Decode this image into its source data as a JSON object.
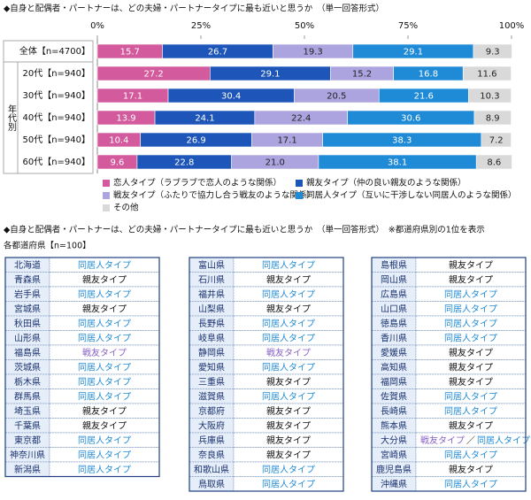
{
  "chart_data": {
    "type": "stackedbar",
    "title": "◆自身と配偶者・パートナーは、どの夫婦・パートナータイプに最も近いと思うか　（単一回答形式）",
    "categories": [
      "全体【n=4700】",
      "20代【n=940】",
      "30代【n=940】",
      "40代【n=940】",
      "50代【n=940】",
      "60代【n=940】"
    ],
    "group_label": "年代別",
    "xlim": [
      0,
      100
    ],
    "xticks": [
      {
        "value": 0,
        "label": "0%"
      },
      {
        "value": 25,
        "label": "25%"
      },
      {
        "value": 50,
        "label": "50%"
      },
      {
        "value": 75,
        "label": "75%"
      },
      {
        "value": 100,
        "label": "100%"
      }
    ],
    "series": [
      {
        "name": "恋人タイプ（ラブラブで恋人のような関係）",
        "color": "#d35a9c",
        "label_color": "#ffffff",
        "values": [
          15.7,
          27.2,
          17.1,
          13.9,
          10.4,
          9.6
        ]
      },
      {
        "name": "親友タイプ（仲の良い親友のような関係）",
        "color": "#1d56b8",
        "label_color": "#ffffff",
        "values": [
          26.7,
          29.1,
          30.4,
          24.1,
          26.9,
          22.8
        ]
      },
      {
        "name": "戦友タイプ（ふたりで協力し合う戦友のような関係）",
        "color": "#aba4df",
        "label_color": "#222222",
        "values": [
          19.3,
          15.2,
          20.5,
          22.4,
          17.1,
          21.0
        ],
        "value_labels": [
          "19.3",
          "15.2",
          "20.5",
          "22.4",
          "17.1",
          "21.0"
        ]
      },
      {
        "name": "同居人タイプ（互いに干渉しない同居人のような関係）",
        "color": "#1f8ad6",
        "label_color": "#ffffff",
        "values": [
          29.1,
          16.8,
          21.6,
          30.6,
          38.3,
          38.1
        ]
      },
      {
        "name": "その他",
        "color": "#d9d9d9",
        "label_color": "#222222",
        "values": [
          9.3,
          11.6,
          10.3,
          8.9,
          7.2,
          8.6
        ]
      }
    ]
  },
  "prefectures": {
    "title": "◆自身と配偶者・パートナーは、どの夫婦・パートナータイプに最も近いと思うか　（単一回答形式）　※都道府県別の1位を表示",
    "subtitle": "各都道府県【n=100】",
    "tie_separator": "／",
    "type_colors": {
      "同居人タイプ": "#1f8ad6",
      "親友タイプ": "#111111",
      "戦友タイプ": "#8a62c8"
    },
    "columns": [
      [
        {
          "name": "北海道",
          "types": [
            "同居人タイプ"
          ]
        },
        {
          "name": "青森県",
          "types": [
            "親友タイプ"
          ]
        },
        {
          "name": "岩手県",
          "types": [
            "同居人タイプ"
          ]
        },
        {
          "name": "宮城県",
          "types": [
            "親友タイプ"
          ]
        },
        {
          "name": "秋田県",
          "types": [
            "同居人タイプ"
          ]
        },
        {
          "name": "山形県",
          "types": [
            "同居人タイプ"
          ]
        },
        {
          "name": "福島県",
          "types": [
            "戦友タイプ"
          ]
        },
        {
          "name": "茨城県",
          "types": [
            "同居人タイプ"
          ]
        },
        {
          "name": "栃木県",
          "types": [
            "同居人タイプ"
          ]
        },
        {
          "name": "群馬県",
          "types": [
            "同居人タイプ"
          ]
        },
        {
          "name": "埼玉県",
          "types": [
            "親友タイプ"
          ]
        },
        {
          "name": "千葉県",
          "types": [
            "親友タイプ"
          ]
        },
        {
          "name": "東京都",
          "types": [
            "同居人タイプ"
          ]
        },
        {
          "name": "神奈川県",
          "types": [
            "同居人タイプ"
          ]
        },
        {
          "name": "新潟県",
          "types": [
            "同居人タイプ"
          ]
        }
      ],
      [
        {
          "name": "富山県",
          "types": [
            "同居人タイプ"
          ]
        },
        {
          "name": "石川県",
          "types": [
            "親友タイプ"
          ]
        },
        {
          "name": "福井県",
          "types": [
            "同居人タイプ"
          ]
        },
        {
          "name": "山梨県",
          "types": [
            "親友タイプ"
          ]
        },
        {
          "name": "長野県",
          "types": [
            "同居人タイプ"
          ]
        },
        {
          "name": "岐阜県",
          "types": [
            "同居人タイプ"
          ]
        },
        {
          "name": "静岡県",
          "types": [
            "戦友タイプ"
          ]
        },
        {
          "name": "愛知県",
          "types": [
            "同居人タイプ"
          ]
        },
        {
          "name": "三重県",
          "types": [
            "親友タイプ"
          ]
        },
        {
          "name": "滋賀県",
          "types": [
            "同居人タイプ"
          ]
        },
        {
          "name": "京都府",
          "types": [
            "親友タイプ"
          ]
        },
        {
          "name": "大阪府",
          "types": [
            "親友タイプ"
          ]
        },
        {
          "name": "兵庫県",
          "types": [
            "親友タイプ"
          ]
        },
        {
          "name": "奈良県",
          "types": [
            "親友タイプ"
          ]
        },
        {
          "name": "和歌山県",
          "types": [
            "同居人タイプ"
          ]
        },
        {
          "name": "鳥取県",
          "types": [
            "同居人タイプ"
          ]
        }
      ],
      [
        {
          "name": "島根県",
          "types": [
            "親友タイプ"
          ]
        },
        {
          "name": "岡山県",
          "types": [
            "親友タイプ"
          ]
        },
        {
          "name": "広島県",
          "types": [
            "同居人タイプ"
          ]
        },
        {
          "name": "山口県",
          "types": [
            "同居人タイプ"
          ]
        },
        {
          "name": "徳島県",
          "types": [
            "同居人タイプ"
          ]
        },
        {
          "name": "香川県",
          "types": [
            "同居人タイプ"
          ]
        },
        {
          "name": "愛媛県",
          "types": [
            "親友タイプ"
          ]
        },
        {
          "name": "高知県",
          "types": [
            "親友タイプ"
          ]
        },
        {
          "name": "福岡県",
          "types": [
            "親友タイプ"
          ]
        },
        {
          "name": "佐賀県",
          "types": [
            "同居人タイプ"
          ]
        },
        {
          "name": "長崎県",
          "types": [
            "同居人タイプ"
          ]
        },
        {
          "name": "熊本県",
          "types": [
            "親友タイプ"
          ]
        },
        {
          "name": "大分県",
          "types": [
            "戦友タイプ",
            "同居人タイプ"
          ]
        },
        {
          "name": "宮崎県",
          "types": [
            "同居人タイプ"
          ]
        },
        {
          "name": "鹿児島県",
          "types": [
            "親友タイプ"
          ]
        },
        {
          "name": "沖縄県",
          "types": [
            "同居人タイプ"
          ]
        }
      ]
    ]
  }
}
